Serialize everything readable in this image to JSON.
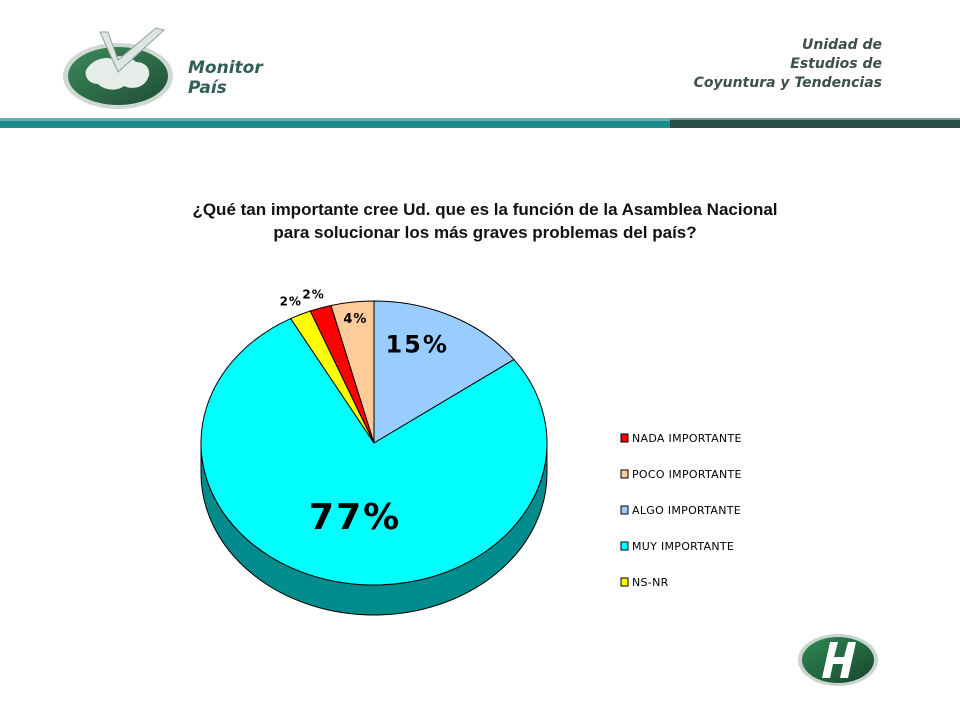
{
  "header": {
    "brand_line1": "Monitor",
    "brand_line2": "País",
    "unit_line1": "Unidad de",
    "unit_line2": "Estudios de",
    "unit_line3": "Coyuntura y Tendencias"
  },
  "colors": {
    "brand_green": "#2f6a4f",
    "header_bar_light": "#1e8a8a",
    "header_bar_dark": "#2a4e48"
  },
  "chart_data": {
    "type": "pie",
    "title_line1": "¿Qué tan importante cree Ud. que es la función de la Asamblea Nacional",
    "title_line2": "para solucionar los más graves problemas del país?",
    "legend_position": "right",
    "series": [
      {
        "name": "NADA IMPORTANTE",
        "value": 2,
        "label": "2%",
        "color": "#ff0000"
      },
      {
        "name": "POCO IMPORTANTE",
        "value": 4,
        "label": "4%",
        "color": "#ffcc99"
      },
      {
        "name": "ALGO IMPORTANTE",
        "value": 15,
        "label": "15%",
        "color": "#99ccff"
      },
      {
        "name": "MUY IMPORTANTE",
        "value": 77,
        "label": "77%",
        "color": "#00ffff"
      },
      {
        "name": "NS-NR",
        "value": 2,
        "label": "2%",
        "color": "#ffff00"
      }
    ]
  }
}
